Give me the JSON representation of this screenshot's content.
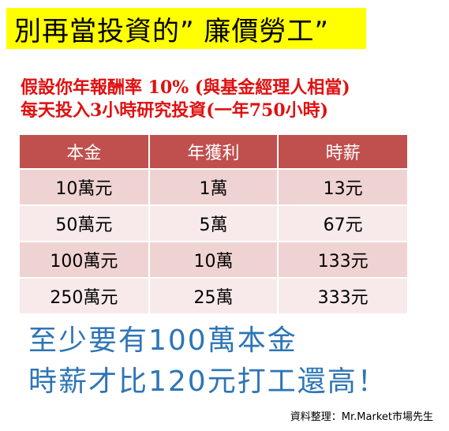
{
  "title": "別再當投資的”  廉價勞工”",
  "premise": {
    "line1": "假設你年報酬率 10%  (與基金經理人相當)",
    "line2": "每天投入3小時研究投資(一年750小時)"
  },
  "table": {
    "headers": [
      "本金",
      "年獲利",
      "時薪"
    ],
    "rows": [
      [
        "10萬元",
        "1萬",
        "13元"
      ],
      [
        "50萬元",
        "5萬",
        "67元"
      ],
      [
        "100萬元",
        "10萬",
        "133元"
      ],
      [
        "250萬元",
        "25萬",
        "333元"
      ]
    ]
  },
  "conclusion": {
    "line1": "至少要有100萬本金",
    "line2": "時薪才比120元打工還高！"
  },
  "credit": "資料整理：Mr.Market市場先生",
  "colors": {
    "title_highlight": "#ffff00",
    "premise_text": "#e01010",
    "table_header": "#c0504d",
    "row_odd": "#efd3d2",
    "row_even": "#f8eaea",
    "conclusion_text": "#2e75b6"
  }
}
